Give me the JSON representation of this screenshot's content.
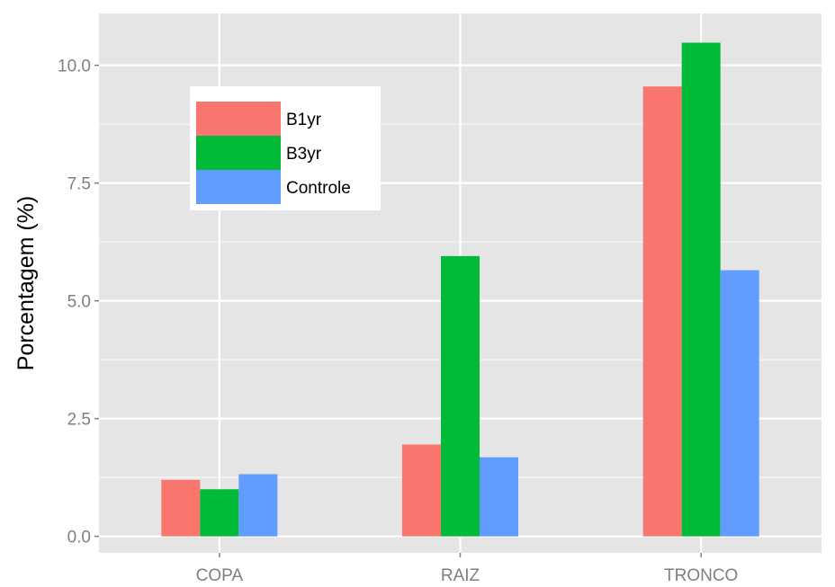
{
  "chart_data": {
    "type": "bar",
    "title": "",
    "xlabel": "",
    "ylabel": "Porcentagem (%)",
    "categories": [
      "COPA",
      "RAIZ",
      "TRONCO"
    ],
    "series": [
      {
        "name": "B1yr",
        "values": [
          1.2,
          1.95,
          9.55
        ],
        "color": "#f8766d"
      },
      {
        "name": "B3yr",
        "values": [
          1.0,
          5.95,
          10.48
        ],
        "color": "#00ba38"
      },
      {
        "name": "Controle",
        "values": [
          1.32,
          1.68,
          5.65
        ],
        "color": "#619cff"
      }
    ],
    "ylim": [
      -0.35,
      11.1
    ],
    "yticks": [
      0.0,
      2.5,
      5.0,
      7.5,
      10.0
    ],
    "ytick_labels": [
      "0.0",
      "2.5",
      "5.0",
      "7.5",
      "10.0"
    ],
    "grid": true,
    "legend_position": "top-left",
    "panel_background": "#e5e5e5",
    "grid_color": "#ffffff"
  }
}
